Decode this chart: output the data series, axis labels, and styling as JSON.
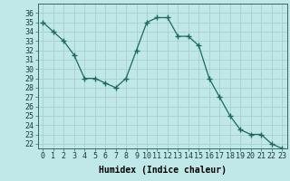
{
  "x": [
    0,
    1,
    2,
    3,
    4,
    5,
    6,
    7,
    8,
    9,
    10,
    11,
    12,
    13,
    14,
    15,
    16,
    17,
    18,
    19,
    20,
    21,
    22,
    23
  ],
  "y": [
    35.0,
    34.0,
    33.0,
    31.5,
    29.0,
    29.0,
    28.5,
    28.0,
    29.0,
    32.0,
    35.0,
    35.5,
    35.5,
    33.5,
    33.5,
    32.5,
    29.0,
    27.0,
    25.0,
    23.5,
    23.0,
    23.0,
    22.0,
    21.5
  ],
  "line_color": "#1a6b5a",
  "marker": "+",
  "bg_color": "#c0e8e8",
  "grid_color": "#a8d0d0",
  "xlabel": "Humidex (Indice chaleur)",
  "ylabel_ticks": [
    22,
    23,
    24,
    25,
    26,
    27,
    28,
    29,
    30,
    31,
    32,
    33,
    34,
    35,
    36
  ],
  "ylim": [
    21.5,
    37.0
  ],
  "xlim": [
    -0.5,
    23.5
  ],
  "xlabel_fontsize": 7,
  "tick_fontsize": 6
}
